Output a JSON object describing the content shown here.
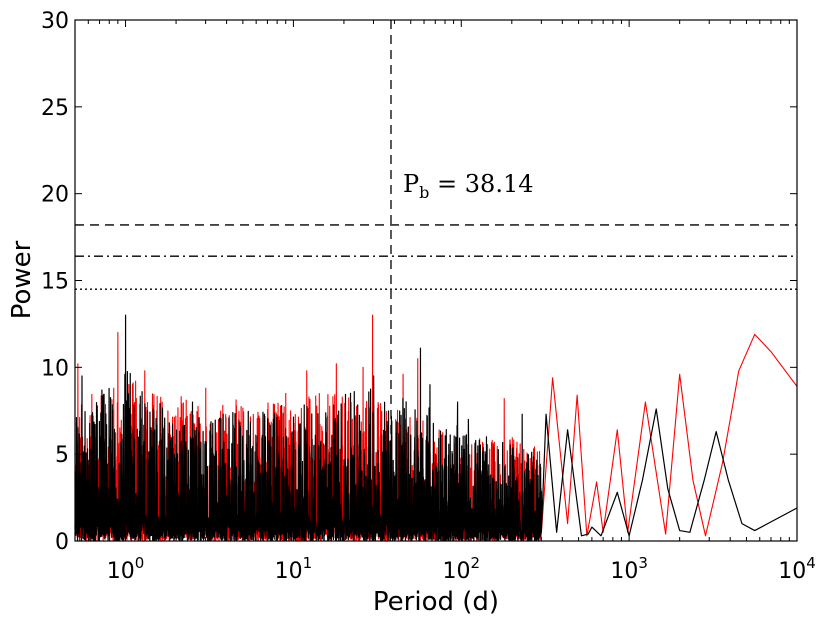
{
  "chart_data": {
    "type": "line",
    "title": "",
    "xlabel": "Period (d)",
    "ylabel": "Power",
    "xscale": "log",
    "xlim": [
      0.5,
      10000
    ],
    "ylim": [
      0,
      30
    ],
    "grid": false,
    "legend": "none",
    "x_ticks": [
      {
        "value": 1,
        "base": "10",
        "exp": "0"
      },
      {
        "value": 10,
        "base": "10",
        "exp": "1"
      },
      {
        "value": 100,
        "base": "10",
        "exp": "2"
      },
      {
        "value": 1000,
        "base": "10",
        "exp": "3"
      },
      {
        "value": 10000,
        "base": "10",
        "exp": "4"
      }
    ],
    "y_ticks": [
      0,
      5,
      10,
      15,
      20,
      25,
      30
    ],
    "annotation": {
      "main": "P",
      "sub": "b",
      "rest": " = 38.14",
      "x": 38.14,
      "y": 19.6
    },
    "reference_lines": [
      {
        "orientation": "vertical",
        "value": 38.14,
        "style": "dashed",
        "color": "#000000"
      },
      {
        "orientation": "horizontal",
        "value": 18.2,
        "style": "dashed",
        "color": "#000000"
      },
      {
        "orientation": "horizontal",
        "value": 16.4,
        "style": "dashdot",
        "color": "#000000"
      },
      {
        "orientation": "horizontal",
        "value": 14.5,
        "style": "dotted",
        "color": "#000000"
      }
    ],
    "series": [
      {
        "color": "#ff0000",
        "noise_envelope": [
          [
            0.5,
            8.0
          ],
          [
            1,
            9.5
          ],
          [
            3,
            8.0
          ],
          [
            10,
            8.5
          ],
          [
            30,
            8.5
          ],
          [
            60,
            7.0
          ],
          [
            100,
            6.0
          ],
          [
            200,
            6.0
          ],
          [
            300,
            5.5
          ]
        ],
        "peaks": [
          [
            0.52,
            10.2
          ],
          [
            0.9,
            12.0
          ],
          [
            1.3,
            9.8
          ],
          [
            3.0,
            8.8
          ],
          [
            9.0,
            8.5
          ],
          [
            12,
            9.8
          ],
          [
            18,
            10.2
          ],
          [
            26,
            10.0
          ],
          [
            29.6,
            13.0
          ],
          [
            45,
            9.6
          ],
          [
            55,
            10.5
          ],
          [
            180,
            8.2
          ]
        ],
        "points": [
          [
            300,
            0.5
          ],
          [
            350,
            9.4
          ],
          [
            430,
            1.0
          ],
          [
            490,
            8.4
          ],
          [
            560,
            0.3
          ],
          [
            640,
            3.4
          ],
          [
            700,
            0.5
          ],
          [
            850,
            6.4
          ],
          [
            980,
            0.5
          ],
          [
            1250,
            8.0
          ],
          [
            1650,
            0.4
          ],
          [
            2000,
            9.6
          ],
          [
            2400,
            3.5
          ],
          [
            2850,
            0.3
          ],
          [
            3600,
            4.5
          ],
          [
            4500,
            9.8
          ],
          [
            5600,
            11.9
          ],
          [
            7000,
            10.9
          ],
          [
            10000,
            8.9
          ]
        ]
      },
      {
        "color": "#000000",
        "noise_envelope": [
          [
            0.5,
            7.5
          ],
          [
            1,
            10.0
          ],
          [
            2,
            7.0
          ],
          [
            5,
            7.5
          ],
          [
            15,
            8.0
          ],
          [
            30,
            9.0
          ],
          [
            60,
            8.0
          ],
          [
            100,
            6.5
          ],
          [
            200,
            5.5
          ],
          [
            300,
            5.0
          ]
        ],
        "peaks": [
          [
            0.55,
            9.5
          ],
          [
            1.0,
            13.0
          ],
          [
            2.5,
            8.0
          ],
          [
            8.5,
            7.8
          ],
          [
            23,
            8.6
          ],
          [
            30,
            9.5
          ],
          [
            57,
            11.1
          ],
          [
            65,
            9.0
          ],
          [
            95,
            8.0
          ],
          [
            110,
            7.0
          ],
          [
            230,
            7.3
          ]
        ],
        "points": [
          [
            300,
            0.5
          ],
          [
            320,
            7.3
          ],
          [
            370,
            0.5
          ],
          [
            430,
            6.4
          ],
          [
            520,
            0.3
          ],
          [
            570,
            0.4
          ],
          [
            600,
            0.8
          ],
          [
            680,
            0.3
          ],
          [
            850,
            2.8
          ],
          [
            1000,
            0.3
          ],
          [
            1200,
            3.5
          ],
          [
            1450,
            7.6
          ],
          [
            1700,
            3.0
          ],
          [
            2000,
            0.6
          ],
          [
            2300,
            0.5
          ],
          [
            2800,
            3.5
          ],
          [
            3300,
            6.3
          ],
          [
            3900,
            3.5
          ],
          [
            4700,
            1.0
          ],
          [
            5600,
            0.6
          ],
          [
            7000,
            1.1
          ],
          [
            10000,
            1.9
          ]
        ]
      }
    ]
  }
}
